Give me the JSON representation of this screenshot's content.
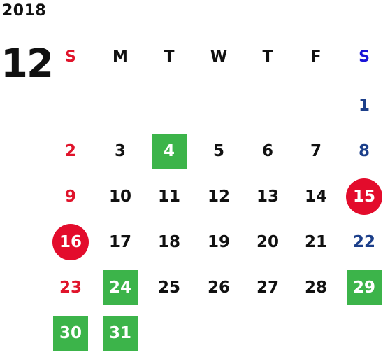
{
  "calendar": {
    "year": "2018",
    "month": "12",
    "weekdays": [
      "S",
      "M",
      "T",
      "W",
      "T",
      "F",
      "S"
    ],
    "colors": {
      "sunday": "#e0142b",
      "saturday_header": "#1a14d8",
      "saturday": "#1c3f8a",
      "highlight_green": "#3cb44a",
      "highlight_red": "#e30c2c"
    },
    "weeks": [
      [
        null,
        null,
        null,
        null,
        null,
        null,
        {
          "day": "1",
          "mark": ""
        }
      ],
      [
        {
          "day": "2",
          "mark": ""
        },
        {
          "day": "3",
          "mark": ""
        },
        {
          "day": "4",
          "mark": "green"
        },
        {
          "day": "5",
          "mark": ""
        },
        {
          "day": "6",
          "mark": ""
        },
        {
          "day": "7",
          "mark": ""
        },
        {
          "day": "8",
          "mark": ""
        }
      ],
      [
        {
          "day": "9",
          "mark": ""
        },
        {
          "day": "10",
          "mark": ""
        },
        {
          "day": "11",
          "mark": ""
        },
        {
          "day": "12",
          "mark": ""
        },
        {
          "day": "13",
          "mark": ""
        },
        {
          "day": "14",
          "mark": ""
        },
        {
          "day": "15",
          "mark": "red"
        }
      ],
      [
        {
          "day": "16",
          "mark": "red"
        },
        {
          "day": "17",
          "mark": ""
        },
        {
          "day": "18",
          "mark": ""
        },
        {
          "day": "19",
          "mark": ""
        },
        {
          "day": "20",
          "mark": ""
        },
        {
          "day": "21",
          "mark": ""
        },
        {
          "day": "22",
          "mark": ""
        }
      ],
      [
        {
          "day": "23",
          "mark": ""
        },
        {
          "day": "24",
          "mark": "green"
        },
        {
          "day": "25",
          "mark": ""
        },
        {
          "day": "26",
          "mark": ""
        },
        {
          "day": "27",
          "mark": ""
        },
        {
          "day": "28",
          "mark": ""
        },
        {
          "day": "29",
          "mark": "green"
        }
      ],
      [
        {
          "day": "30",
          "mark": "green"
        },
        {
          "day": "31",
          "mark": "green"
        },
        null,
        null,
        null,
        null,
        null
      ]
    ]
  }
}
